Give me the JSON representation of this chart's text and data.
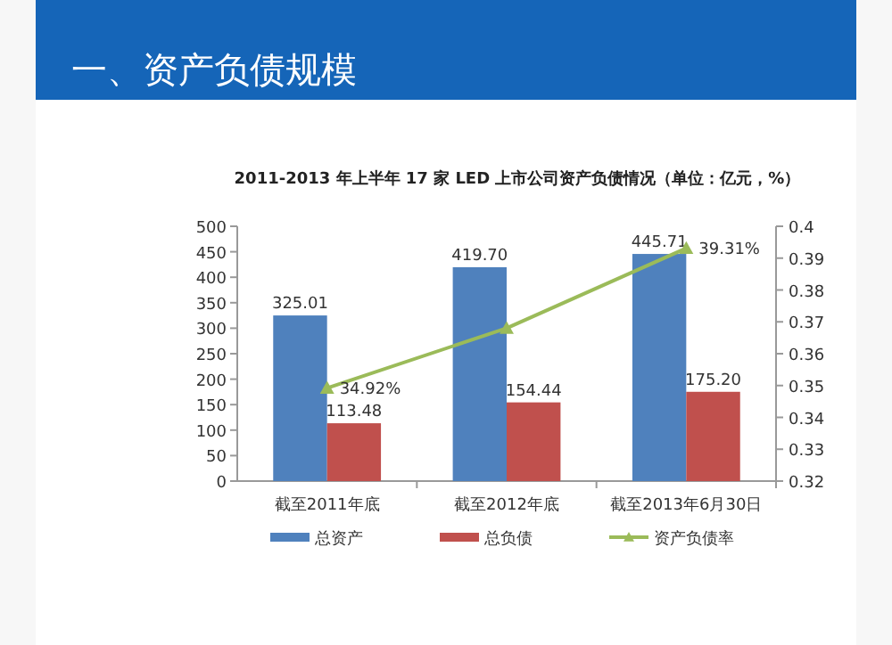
{
  "chart_data": {
    "type": "bar",
    "title": "一、资产负债规模",
    "subtitle": "2011-2013 年上半年 17 家 LED 上市公司资产负债情况（单位：亿元，%）",
    "categories": [
      "截至2011年底",
      "截至2012年底",
      "截至2013年6月30日"
    ],
    "series": [
      {
        "name": "总资产",
        "color": "#4f81bd",
        "values": [
          325.01,
          419.7,
          445.71
        ],
        "value_labels": [
          "325.01",
          "419.70",
          "445.71"
        ]
      },
      {
        "name": "总负债",
        "color": "#c0504d",
        "values": [
          113.48,
          154.44,
          175.2
        ],
        "value_labels": [
          "113.48",
          "154.44",
          "175.20"
        ]
      },
      {
        "name": "资产负债率",
        "type": "line",
        "axis": "y2",
        "color": "#9bbb59",
        "marker": "triangle",
        "values": [
          0.3492,
          0.368,
          0.3931
        ],
        "value_labels": [
          "34.92%",
          null,
          "39.31%"
        ]
      }
    ],
    "ylim": [
      0,
      500
    ],
    "yticks": [
      0,
      50,
      100,
      150,
      200,
      250,
      300,
      350,
      400,
      450,
      500
    ],
    "y2lim": [
      0.32,
      0.4
    ],
    "y2ticks": [
      0.32,
      0.33,
      0.34,
      0.35,
      0.36,
      0.37,
      0.38,
      0.39,
      0.4
    ],
    "legend": "bottom"
  }
}
